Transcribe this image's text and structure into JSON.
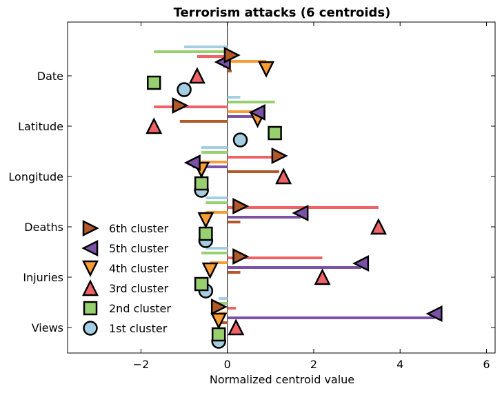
{
  "chart_data": {
    "type": "scatter",
    "title": "Terrorism attacks (6 centroids)",
    "xlabel": "Normalized centroid value",
    "ylabel": "",
    "xlim": [
      -3.7,
      6.2
    ],
    "xticks": [
      -2,
      0,
      2,
      4,
      6
    ],
    "xtick_labels": [
      "−2",
      "0",
      "2",
      "4",
      "6"
    ],
    "categories": [
      "Date",
      "Latitude",
      "Longitude",
      "Deaths",
      "Injuries",
      "Views"
    ],
    "grid": false,
    "legend_position": "lower left",
    "series": [
      {
        "name": "6th cluster",
        "marker": "triangle-right",
        "color": "#b15928",
        "values": [
          0.1,
          -1.1,
          1.2,
          0.3,
          0.3,
          -0.2
        ]
      },
      {
        "name": "5th cluster",
        "marker": "triangle-left",
        "color": "#7b52a6",
        "values": [
          -0.1,
          0.7,
          -0.8,
          1.7,
          3.1,
          4.8
        ]
      },
      {
        "name": "4th cluster",
        "marker": "triangle-down",
        "color": "#f89c36",
        "values": [
          0.9,
          0.7,
          -0.6,
          -0.5,
          -0.4,
          -0.2
        ]
      },
      {
        "name": "3rd cluster",
        "marker": "triangle-up",
        "color": "#ef6366",
        "values": [
          -0.7,
          -1.7,
          1.3,
          3.5,
          2.2,
          0.2
        ]
      },
      {
        "name": "2nd cluster",
        "marker": "square",
        "color": "#98cf6f",
        "values": [
          -1.7,
          1.1,
          -0.6,
          -0.5,
          -0.6,
          -0.2
        ]
      },
      {
        "name": "1st cluster",
        "marker": "circle",
        "color": "#a6cee3",
        "values": [
          -1.0,
          0.3,
          -0.6,
          -0.5,
          -0.5,
          -0.2
        ]
      }
    ]
  }
}
